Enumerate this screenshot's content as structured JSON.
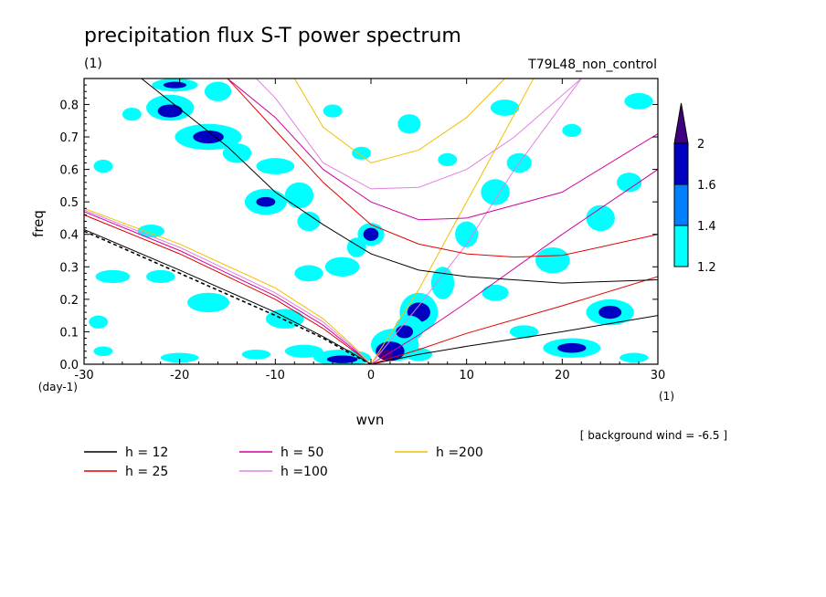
{
  "chart_data": {
    "type": "heatmap",
    "title": "precipitation flux S-T power spectrum",
    "subtitle_left": "(1)",
    "subtitle_right": "T79L48_non_control",
    "xlabel": "wvn",
    "ylabel": "freq",
    "x_unit": "(1)",
    "y_unit": "(day-1)",
    "xlim": [
      -30,
      30
    ],
    "ylim": [
      0,
      0.88
    ],
    "x_ticks": [
      -30,
      -20,
      -10,
      0,
      10,
      20,
      30
    ],
    "x_tick_labels": [
      "-30",
      "-20",
      "-10",
      "0",
      "10",
      "20",
      "30"
    ],
    "y_ticks": [
      0,
      0.1,
      0.2,
      0.3,
      0.4,
      0.5,
      0.6,
      0.7,
      0.8
    ],
    "y_tick_labels": [
      "0.0",
      "0.1",
      "0.2",
      "0.3",
      "0.4",
      "0.5",
      "0.6",
      "0.7",
      "0.8"
    ],
    "annotation": "[ background wind = -6.5 ]",
    "colorbar": {
      "levels": [
        1.2,
        1.4,
        1.6,
        2
      ],
      "labels": [
        "1.2",
        "1.4",
        "1.6",
        "2"
      ],
      "colors": [
        "#00ffff",
        "#0080ff",
        "#0000c0",
        "#400080"
      ]
    },
    "legend": [
      {
        "label": "h = 12",
        "color": "#000000"
      },
      {
        "label": "h = 25",
        "color": "#e00000"
      },
      {
        "label": "h = 50",
        "color": "#d000a0"
      },
      {
        "label": "h =100",
        "color": "#e080e0"
      },
      {
        "label": "h =200",
        "color": "#f0c000"
      }
    ],
    "dispersion_curves": [
      {
        "family": "Rossby",
        "h": 12,
        "color": "#000000",
        "points": [
          [
            -30,
            0.415
          ],
          [
            -20,
            0.29
          ],
          [
            -10,
            0.16
          ],
          [
            -5,
            0.085
          ],
          [
            -2,
            0.035
          ],
          [
            0,
            0
          ]
        ]
      },
      {
        "family": "Rossby",
        "h": 25,
        "color": "#e00000",
        "points": [
          [
            -30,
            0.46
          ],
          [
            -20,
            0.34
          ],
          [
            -10,
            0.2
          ],
          [
            -5,
            0.11
          ],
          [
            -2,
            0.045
          ],
          [
            0,
            0
          ]
        ]
      },
      {
        "family": "Rossby",
        "h": 50,
        "color": "#d000a0",
        "points": [
          [
            -30,
            0.47
          ],
          [
            -20,
            0.35
          ],
          [
            -10,
            0.21
          ],
          [
            -5,
            0.12
          ],
          [
            -2,
            0.05
          ],
          [
            0,
            0
          ]
        ]
      },
      {
        "family": "Rossby",
        "h": 100,
        "color": "#e080e0",
        "points": [
          [
            -30,
            0.475
          ],
          [
            -20,
            0.36
          ],
          [
            -10,
            0.22
          ],
          [
            -5,
            0.13
          ],
          [
            -2,
            0.055
          ],
          [
            0,
            0
          ]
        ]
      },
      {
        "family": "Rossby",
        "h": 200,
        "color": "#f0c000",
        "points": [
          [
            -30,
            0.48
          ],
          [
            -20,
            0.37
          ],
          [
            -10,
            0.235
          ],
          [
            -5,
            0.14
          ],
          [
            -2,
            0.06
          ],
          [
            0,
            0
          ]
        ]
      },
      {
        "family": "Kelvin",
        "h": 12,
        "color": "#000000",
        "points": [
          [
            0,
            0
          ],
          [
            5,
            0.03
          ],
          [
            10,
            0.055
          ],
          [
            20,
            0.1
          ],
          [
            30,
            0.15
          ]
        ]
      },
      {
        "family": "Kelvin",
        "h": 25,
        "color": "#e00000",
        "points": [
          [
            0,
            0
          ],
          [
            5,
            0.045
          ],
          [
            10,
            0.095
          ],
          [
            20,
            0.18
          ],
          [
            30,
            0.27
          ]
        ]
      },
      {
        "family": "Kelvin",
        "h": 50,
        "color": "#d000a0",
        "points": [
          [
            0,
            0
          ],
          [
            5,
            0.09
          ],
          [
            10,
            0.19
          ],
          [
            20,
            0.4
          ],
          [
            30,
            0.6
          ]
        ]
      },
      {
        "family": "Kelvin",
        "h": 100,
        "color": "#e080e0",
        "points": [
          [
            0,
            0
          ],
          [
            5,
            0.18
          ],
          [
            10,
            0.37
          ],
          [
            15,
            0.6
          ],
          [
            22,
            0.88
          ]
        ]
      },
      {
        "family": "Kelvin",
        "h": 200,
        "color": "#f0c000",
        "points": [
          [
            0,
            0
          ],
          [
            5,
            0.23
          ],
          [
            10,
            0.5
          ],
          [
            15,
            0.77
          ],
          [
            17,
            0.88
          ]
        ]
      },
      {
        "family": "Inertia-gravity",
        "h": 12,
        "color": "#000000",
        "points": [
          [
            -24,
            0.88
          ],
          [
            -15,
            0.67
          ],
          [
            -10,
            0.53
          ],
          [
            -5,
            0.43
          ],
          [
            0,
            0.34
          ],
          [
            5,
            0.29
          ],
          [
            10,
            0.27
          ],
          [
            20,
            0.25
          ],
          [
            30,
            0.26
          ]
        ]
      },
      {
        "family": "Inertia-gravity",
        "h": 25,
        "color": "#e00000",
        "points": [
          [
            -15,
            0.88
          ],
          [
            -10,
            0.72
          ],
          [
            -5,
            0.56
          ],
          [
            0,
            0.43
          ],
          [
            5,
            0.37
          ],
          [
            10,
            0.34
          ],
          [
            15,
            0.33
          ],
          [
            20,
            0.335
          ],
          [
            30,
            0.4
          ]
        ]
      },
      {
        "family": "Inertia-gravity",
        "h": 50,
        "color": "#d000a0",
        "points": [
          [
            -15,
            0.88
          ],
          [
            -10,
            0.76
          ],
          [
            -5,
            0.6
          ],
          [
            0,
            0.5
          ],
          [
            5,
            0.445
          ],
          [
            10,
            0.45
          ],
          [
            20,
            0.53
          ],
          [
            30,
            0.71
          ]
        ]
      },
      {
        "family": "Inertia-gravity",
        "h": 100,
        "color": "#e080e0",
        "points": [
          [
            -12,
            0.88
          ],
          [
            -10,
            0.82
          ],
          [
            -5,
            0.62
          ],
          [
            0,
            0.54
          ],
          [
            5,
            0.545
          ],
          [
            10,
            0.6
          ],
          [
            15,
            0.7
          ],
          [
            22,
            0.88
          ]
        ]
      },
      {
        "family": "Inertia-gravity",
        "h": 200,
        "color": "#f0c000",
        "points": [
          [
            -8,
            0.88
          ],
          [
            -5,
            0.73
          ],
          [
            0,
            0.62
          ],
          [
            5,
            0.66
          ],
          [
            10,
            0.76
          ],
          [
            14,
            0.88
          ]
        ]
      },
      {
        "family": "Rossby-dashed",
        "h": 0,
        "color": "#000000",
        "dashed": true,
        "points": [
          [
            -30,
            0.41
          ],
          [
            -20,
            0.28
          ],
          [
            -10,
            0.15
          ],
          [
            -5,
            0.08
          ],
          [
            -2,
            0.03
          ],
          [
            0,
            0
          ]
        ]
      }
    ],
    "power_regions": [
      {
        "level": 1.2,
        "cx": -20.5,
        "cy": 0.86,
        "rx": 2.4,
        "ry": 0.02
      },
      {
        "level": 1.6,
        "cx": -20.5,
        "cy": 0.86,
        "rx": 1.2,
        "ry": 0.01
      },
      {
        "level": 1.2,
        "cx": -16,
        "cy": 0.84,
        "rx": 1.4,
        "ry": 0.03
      },
      {
        "level": 1.2,
        "cx": -21,
        "cy": 0.79,
        "rx": 2.5,
        "ry": 0.04
      },
      {
        "level": 1.6,
        "cx": -21,
        "cy": 0.78,
        "rx": 1.3,
        "ry": 0.02
      },
      {
        "level": 1.2,
        "cx": -17,
        "cy": 0.7,
        "rx": 3.5,
        "ry": 0.04
      },
      {
        "level": 1.6,
        "cx": -17,
        "cy": 0.7,
        "rx": 1.6,
        "ry": 0.02
      },
      {
        "level": 1.2,
        "cx": -14,
        "cy": 0.65,
        "rx": 1.5,
        "ry": 0.03
      },
      {
        "level": 1.2,
        "cx": -10,
        "cy": 0.61,
        "rx": 2,
        "ry": 0.025
      },
      {
        "level": 1.2,
        "cx": -11,
        "cy": 0.5,
        "rx": 2.2,
        "ry": 0.04
      },
      {
        "level": 1.6,
        "cx": -11,
        "cy": 0.5,
        "rx": 1,
        "ry": 0.015
      },
      {
        "level": 1.2,
        "cx": -7.5,
        "cy": 0.52,
        "rx": 1.5,
        "ry": 0.04
      },
      {
        "level": 1.2,
        "cx": -6.5,
        "cy": 0.44,
        "rx": 1.2,
        "ry": 0.03
      },
      {
        "level": 1.2,
        "cx": 0,
        "cy": 0.4,
        "rx": 1.4,
        "ry": 0.035
      },
      {
        "level": 1.6,
        "cx": 0,
        "cy": 0.4,
        "rx": 0.8,
        "ry": 0.02
      },
      {
        "level": 1.2,
        "cx": -1.5,
        "cy": 0.36,
        "rx": 1,
        "ry": 0.03
      },
      {
        "level": 1.2,
        "cx": -3,
        "cy": 0.3,
        "rx": 1.8,
        "ry": 0.03
      },
      {
        "level": 1.2,
        "cx": -6.5,
        "cy": 0.28,
        "rx": 1.5,
        "ry": 0.025
      },
      {
        "level": 1.2,
        "cx": -27,
        "cy": 0.27,
        "rx": 1.8,
        "ry": 0.02
      },
      {
        "level": 1.2,
        "cx": -22,
        "cy": 0.27,
        "rx": 1.5,
        "ry": 0.02
      },
      {
        "level": 1.2,
        "cx": -17,
        "cy": 0.19,
        "rx": 2.2,
        "ry": 0.03
      },
      {
        "level": 1.2,
        "cx": -9,
        "cy": 0.14,
        "rx": 2,
        "ry": 0.03
      },
      {
        "level": 1.2,
        "cx": -28.5,
        "cy": 0.13,
        "rx": 1,
        "ry": 0.02
      },
      {
        "level": 1.2,
        "cx": -3,
        "cy": 0.02,
        "rx": 3,
        "ry": 0.025
      },
      {
        "level": 1.6,
        "cx": -3,
        "cy": 0.015,
        "rx": 1.6,
        "ry": 0.012
      },
      {
        "level": 1.2,
        "cx": -7,
        "cy": 0.04,
        "rx": 2,
        "ry": 0.02
      },
      {
        "level": 1.2,
        "cx": -20,
        "cy": 0.02,
        "rx": 2,
        "ry": 0.015
      },
      {
        "level": 1.2,
        "cx": -12,
        "cy": 0.03,
        "rx": 1.5,
        "ry": 0.015
      },
      {
        "level": 1.2,
        "cx": -28,
        "cy": 0.04,
        "rx": 1,
        "ry": 0.015
      },
      {
        "level": 1.2,
        "cx": 2.5,
        "cy": 0.06,
        "rx": 2.5,
        "ry": 0.05
      },
      {
        "level": 1.6,
        "cx": 2,
        "cy": 0.04,
        "rx": 1.5,
        "ry": 0.03
      },
      {
        "level": 2,
        "cx": 1.5,
        "cy": 0.03,
        "rx": 0.8,
        "ry": 0.015
      },
      {
        "level": 1.2,
        "cx": 5,
        "cy": 0.16,
        "rx": 2,
        "ry": 0.06
      },
      {
        "level": 1.6,
        "cx": 5,
        "cy": 0.16,
        "rx": 1.2,
        "ry": 0.03
      },
      {
        "level": 1.2,
        "cx": 4,
        "cy": 0.11,
        "rx": 1.5,
        "ry": 0.04
      },
      {
        "level": 1.6,
        "cx": 3.5,
        "cy": 0.1,
        "rx": 0.9,
        "ry": 0.02
      },
      {
        "level": 1.2,
        "cx": 5,
        "cy": 0.03,
        "rx": 1.4,
        "ry": 0.02
      },
      {
        "level": 1.2,
        "cx": 7.5,
        "cy": 0.25,
        "rx": 1.2,
        "ry": 0.05
      },
      {
        "level": 1.2,
        "cx": 10,
        "cy": 0.4,
        "rx": 1.2,
        "ry": 0.04
      },
      {
        "level": 1.2,
        "cx": 13,
        "cy": 0.53,
        "rx": 1.5,
        "ry": 0.04
      },
      {
        "level": 1.2,
        "cx": 15.5,
        "cy": 0.62,
        "rx": 1.3,
        "ry": 0.03
      },
      {
        "level": 1.2,
        "cx": 14,
        "cy": 0.79,
        "rx": 1.5,
        "ry": 0.025
      },
      {
        "level": 1.2,
        "cx": 4,
        "cy": 0.74,
        "rx": 1.2,
        "ry": 0.03
      },
      {
        "level": 1.2,
        "cx": 19,
        "cy": 0.32,
        "rx": 1.8,
        "ry": 0.04
      },
      {
        "level": 1.2,
        "cx": 24,
        "cy": 0.45,
        "rx": 1.5,
        "ry": 0.04
      },
      {
        "level": 1.2,
        "cx": 27,
        "cy": 0.56,
        "rx": 1.3,
        "ry": 0.03
      },
      {
        "level": 1.2,
        "cx": 28,
        "cy": 0.81,
        "rx": 1.5,
        "ry": 0.025
      },
      {
        "level": 1.2,
        "cx": 25,
        "cy": 0.16,
        "rx": 2.5,
        "ry": 0.04
      },
      {
        "level": 1.6,
        "cx": 25,
        "cy": 0.16,
        "rx": 1.2,
        "ry": 0.02
      },
      {
        "level": 1.2,
        "cx": 21,
        "cy": 0.05,
        "rx": 3,
        "ry": 0.03
      },
      {
        "level": 1.6,
        "cx": 21,
        "cy": 0.05,
        "rx": 1.5,
        "ry": 0.015
      },
      {
        "level": 1.2,
        "cx": 27.5,
        "cy": 0.02,
        "rx": 1.5,
        "ry": 0.015
      },
      {
        "level": 1.2,
        "cx": 16,
        "cy": 0.1,
        "rx": 1.5,
        "ry": 0.02
      },
      {
        "level": 1.2,
        "cx": -23,
        "cy": 0.41,
        "rx": 1.4,
        "ry": 0.02
      },
      {
        "level": 1.2,
        "cx": -28,
        "cy": 0.61,
        "rx": 1,
        "ry": 0.02
      },
      {
        "level": 1.2,
        "cx": -25,
        "cy": 0.77,
        "rx": 1,
        "ry": 0.02
      },
      {
        "level": 1.2,
        "cx": 8,
        "cy": 0.63,
        "rx": 1,
        "ry": 0.02
      },
      {
        "level": 1.2,
        "cx": 21,
        "cy": 0.72,
        "rx": 1,
        "ry": 0.02
      },
      {
        "level": 1.2,
        "cx": 13,
        "cy": 0.22,
        "rx": 1.4,
        "ry": 0.025
      },
      {
        "level": 1.2,
        "cx": -1,
        "cy": 0.65,
        "rx": 1,
        "ry": 0.02
      },
      {
        "level": 1.2,
        "cx": -4,
        "cy": 0.78,
        "rx": 1,
        "ry": 0.02
      }
    ]
  }
}
